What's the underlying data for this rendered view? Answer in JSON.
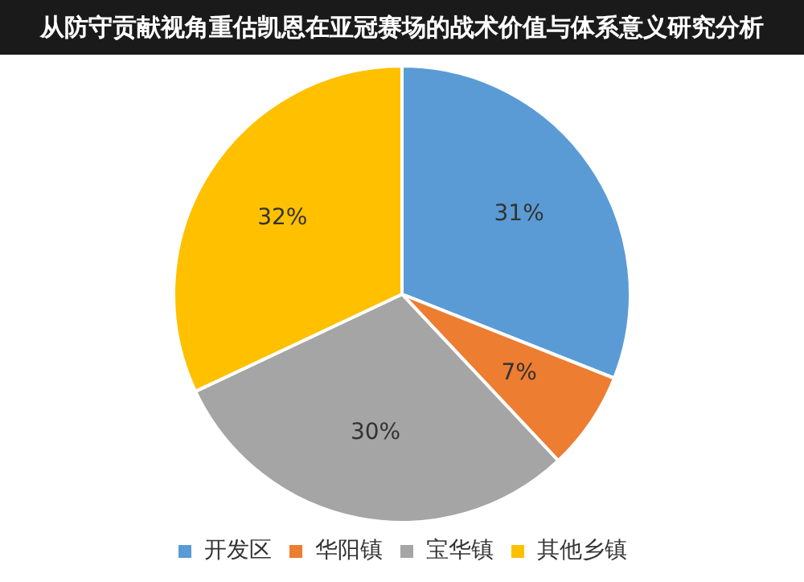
{
  "chart_data": {
    "type": "pie",
    "title": "从防守贡献视角重估凯恩在亚冠赛场的战术价值与体系意义研究分析",
    "categories": [
      "开发区",
      "华阳镇",
      "宝华镇",
      "其他乡镇"
    ],
    "values": [
      31,
      7,
      30,
      32
    ],
    "colors": [
      "#5b9bd5",
      "#ed7d31",
      "#a5a5a5",
      "#ffc000"
    ],
    "value_labels": [
      "31%",
      "7%",
      "30%",
      "32%"
    ],
    "legend": "bottom"
  }
}
